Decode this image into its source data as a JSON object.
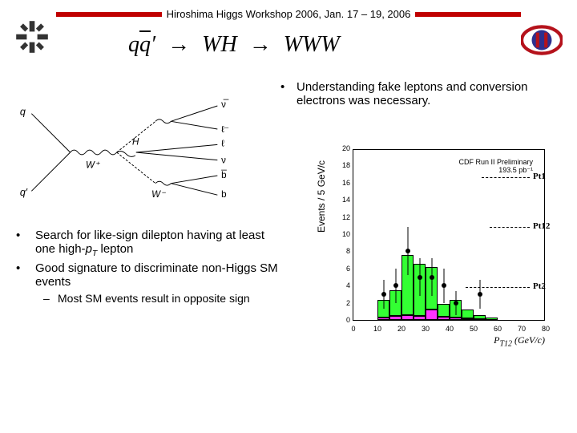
{
  "header": {
    "title": "Hiroshima Higgs Workshop 2006, Jan. 17 – 19, 2006"
  },
  "logos": {
    "left_color": "#2a2a2a",
    "right_outer": "#b5121b",
    "right_inner": "#2d2f8f"
  },
  "equation": {
    "lhs_a": "q",
    "lhs_b": "q",
    "lhs_b_prime": "′",
    "rhs1_a": "W",
    "rhs1_b": "H",
    "rhs2": "WWW"
  },
  "bullets": {
    "top": "Understanding fake leptons and conversion electrons was necessary.",
    "b1_pre": "Search for like-sign dilepton having at least one high-",
    "b1_pt": "p",
    "b1_sub": "T",
    "b1_post": " lepton",
    "b2": "Good signature to discriminate non-Higgs SM events",
    "sub1": "Most SM events result in opposite sign"
  },
  "feynman": {
    "in_top": "q",
    "in_bot": "q′",
    "wplus": "W⁺",
    "wminus": "W⁻",
    "higgs": "H",
    "out1": "ν̅",
    "out2": "ℓ⁻",
    "out3": "ℓ",
    "out4": "ν",
    "out5": "b̅",
    "out6": "b"
  },
  "plot": {
    "corner_line1": "CDF Run II Preliminary",
    "corner_line2": "193.5 pb⁻¹",
    "ylabel": "Events / 5 GeV/c",
    "xlabel_pre": "P",
    "xlabel_sub": "T12",
    "xlabel_post": " (GeV/c)",
    "line1_label": "Pt1",
    "line12_label": "Pt12",
    "line2_label": "Pt2",
    "x_ticks": [
      0,
      10,
      20,
      30,
      40,
      50,
      60,
      70,
      80
    ],
    "y_ticks": [
      0,
      2,
      4,
      6,
      8,
      10,
      12,
      14,
      16,
      18,
      20
    ],
    "ylim": [
      0,
      20
    ],
    "xlim": [
      0,
      80
    ],
    "colors": {
      "green": "#33ff33",
      "magenta": "#ff33ff",
      "background": "#ffffff"
    },
    "bins": [
      {
        "x": 2.5,
        "green": 0,
        "magenta": 0
      },
      {
        "x": 7.5,
        "green": 0,
        "magenta": 0
      },
      {
        "x": 12.5,
        "green": 2,
        "magenta": 0.3
      },
      {
        "x": 17.5,
        "green": 3,
        "magenta": 0.5
      },
      {
        "x": 22.5,
        "green": 7,
        "magenta": 0.6
      },
      {
        "x": 27.5,
        "green": 6,
        "magenta": 0.5
      },
      {
        "x": 32.5,
        "green": 5,
        "magenta": 1.2
      },
      {
        "x": 37.5,
        "green": 1.5,
        "magenta": 0.4
      },
      {
        "x": 42.5,
        "green": 2,
        "magenta": 0.3
      },
      {
        "x": 47.5,
        "green": 1,
        "magenta": 0.2
      },
      {
        "x": 52.5,
        "green": 0.5,
        "magenta": 0.1
      },
      {
        "x": 57.5,
        "green": 0.3,
        "magenta": 0
      }
    ],
    "data_points": [
      {
        "x": 12.5,
        "y": 3,
        "err": 1.7
      },
      {
        "x": 17.5,
        "y": 4,
        "err": 2.0
      },
      {
        "x": 22.5,
        "y": 8,
        "err": 2.8
      },
      {
        "x": 27.5,
        "y": 5,
        "err": 2.2
      },
      {
        "x": 32.5,
        "y": 5,
        "err": 2.2
      },
      {
        "x": 37.5,
        "y": 4,
        "err": 2.0
      },
      {
        "x": 42.5,
        "y": 2,
        "err": 1.4
      },
      {
        "x": 52.5,
        "y": 3,
        "err": 1.7
      }
    ]
  }
}
